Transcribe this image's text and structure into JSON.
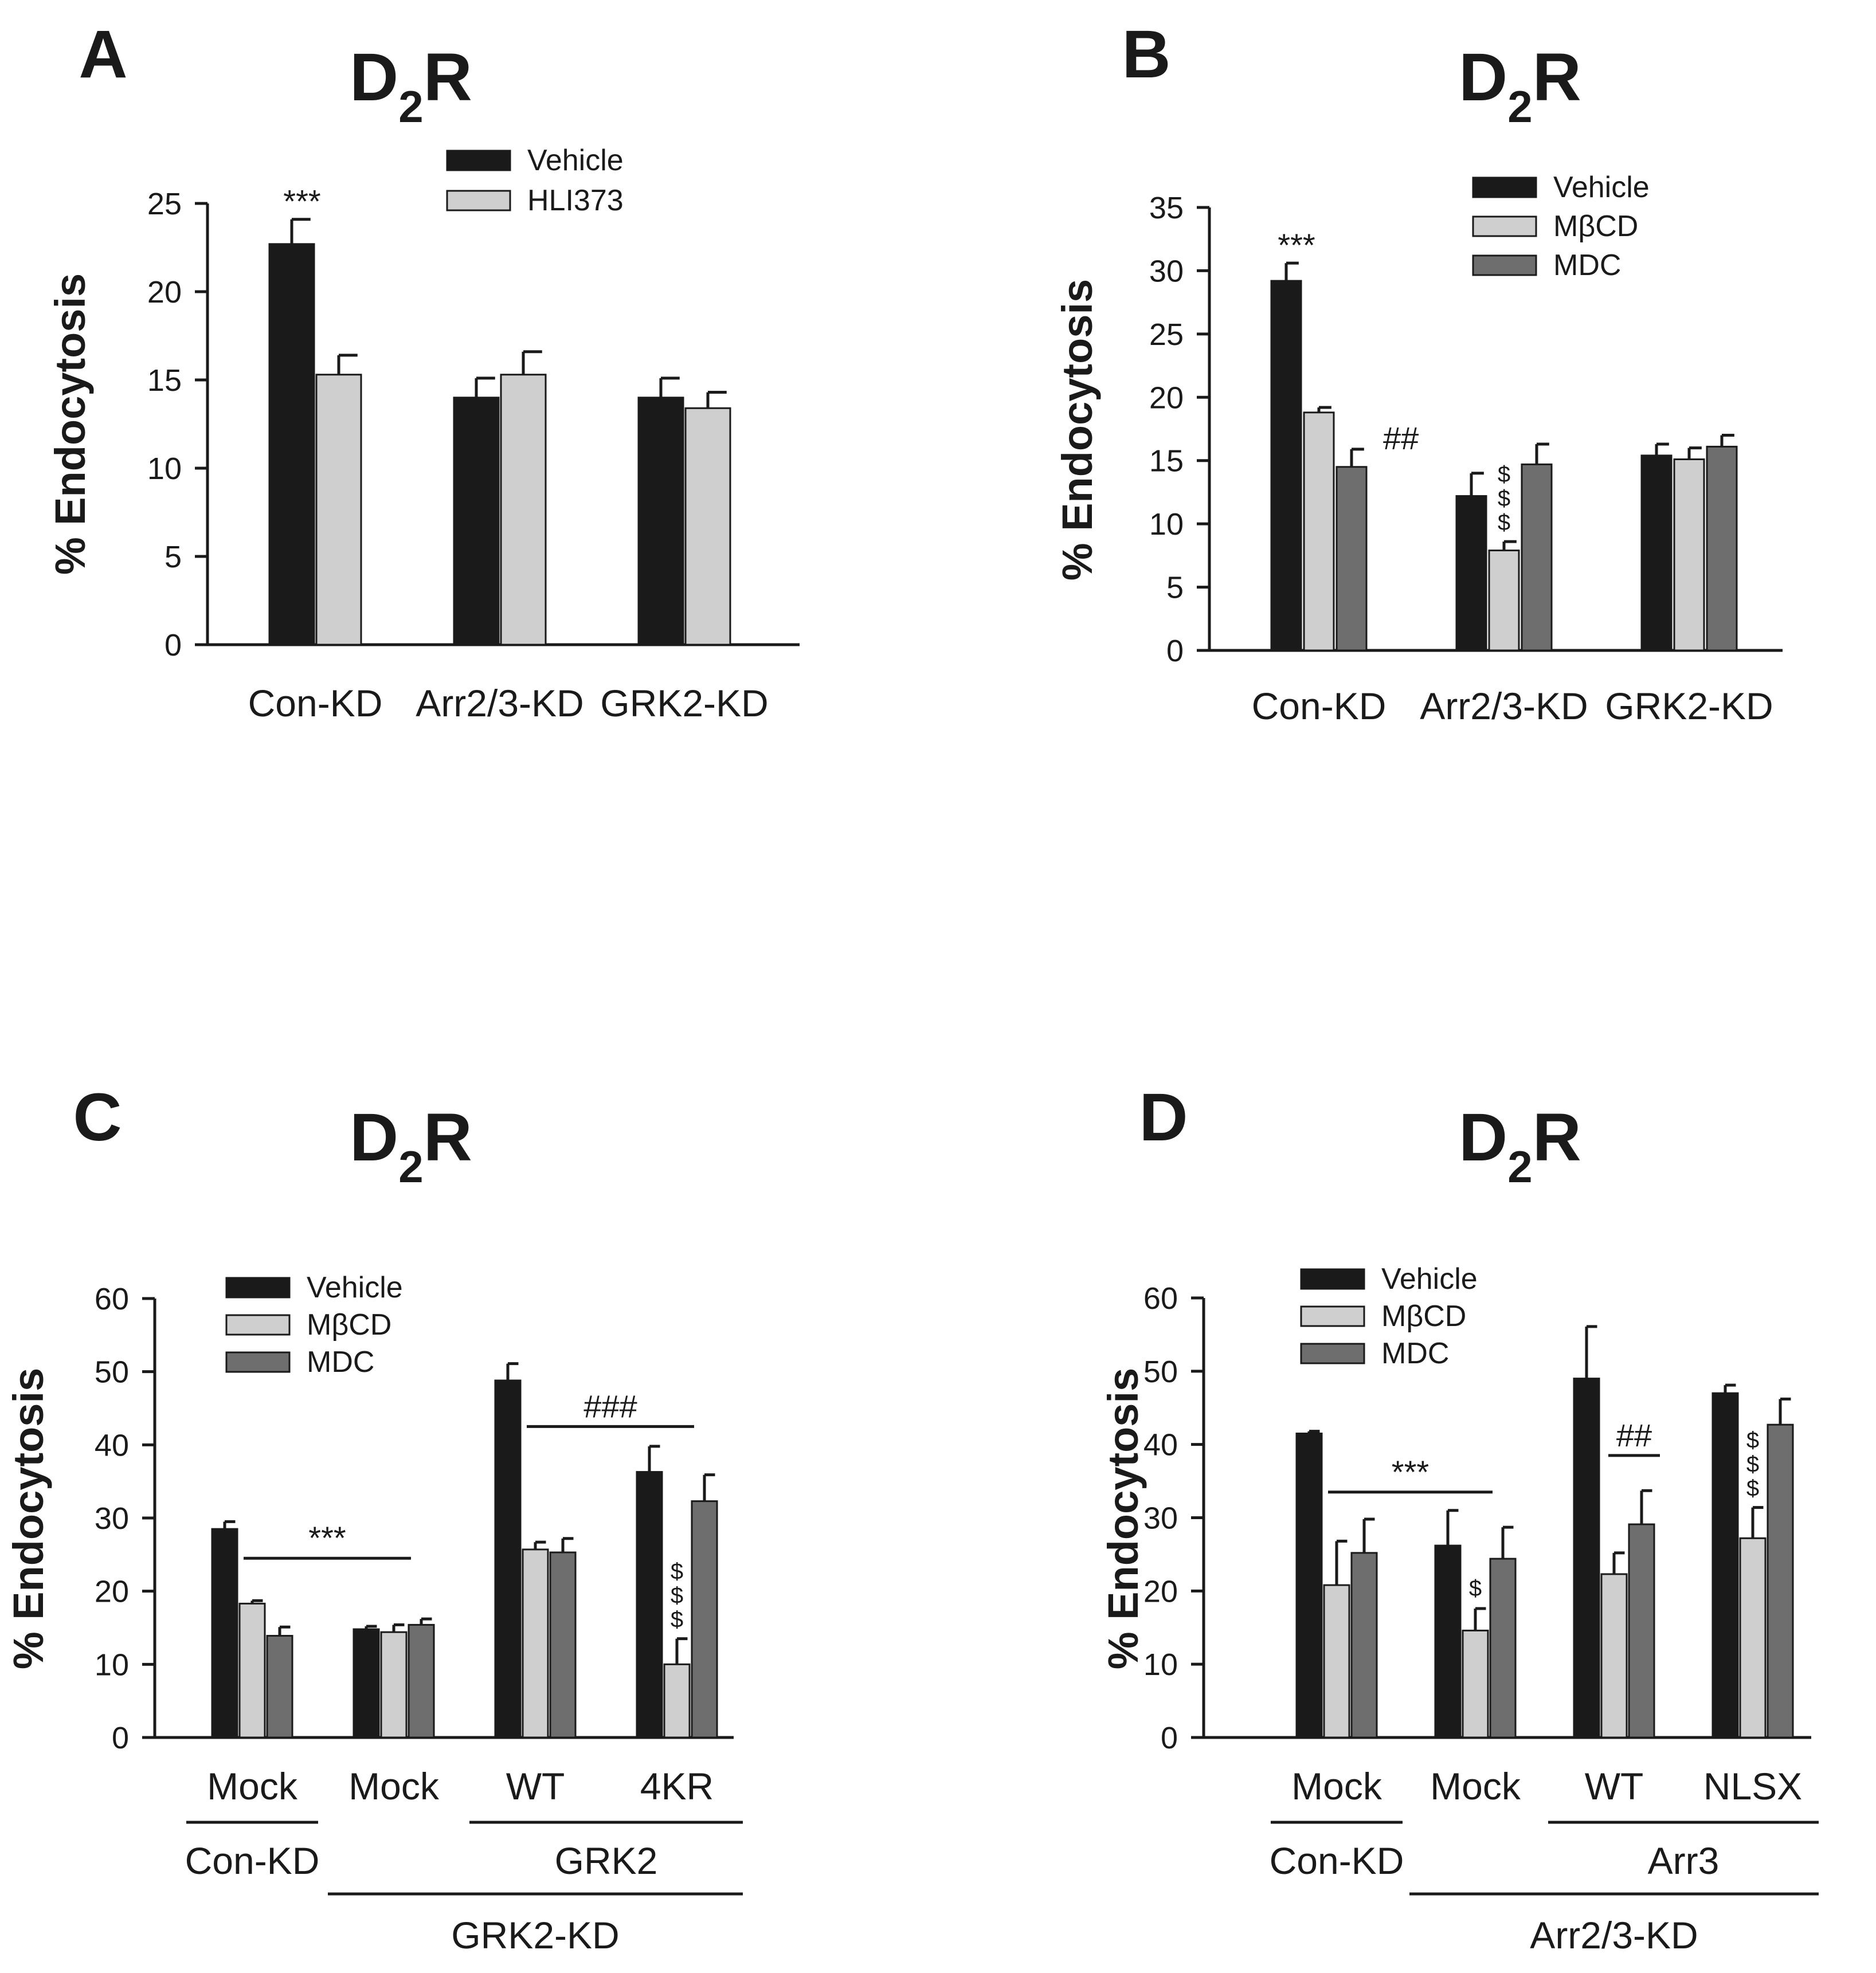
{
  "colors": {
    "Vehicle": "#1a1a1a",
    "HLI373": "#cfcfcf",
    "MβCD": "#cfcfcf",
    "MDC": "#6e6e6e"
  },
  "chart_data": [
    {
      "id": "A",
      "type": "bar",
      "panel_label": "A",
      "title": {
        "main": "D",
        "sub": "2",
        "tail": "R"
      },
      "ylabel": "% Endocytosis",
      "xlabel": "",
      "ylim": [
        0,
        25
      ],
      "yticks": [
        0,
        5,
        10,
        15,
        20,
        25
      ],
      "categories": [
        "Con-KD",
        "Arr2/3-KD",
        "GRK2-KD"
      ],
      "series": [
        {
          "name": "Vehicle",
          "values": [
            22.7,
            14.0,
            14.0
          ],
          "errors": [
            1.4,
            1.1,
            1.1
          ]
        },
        {
          "name": "HLI373",
          "values": [
            15.3,
            15.3,
            13.4
          ],
          "errors": [
            1.1,
            1.3,
            0.9
          ]
        }
      ],
      "legend": [
        "Vehicle",
        "HLI373"
      ],
      "annotations": [
        {
          "text": "***",
          "category": 0,
          "series": 0
        }
      ],
      "brackets": [],
      "group_labels": []
    },
    {
      "id": "B",
      "type": "bar",
      "panel_label": "B",
      "title": {
        "main": "D",
        "sub": "2",
        "tail": "R"
      },
      "ylabel": "% Endocytosis",
      "xlabel": "",
      "ylim": [
        0,
        35
      ],
      "yticks": [
        0,
        5,
        10,
        15,
        20,
        25,
        30,
        35
      ],
      "categories": [
        "Con-KD",
        "Arr2/3-KD",
        "GRK2-KD"
      ],
      "series": [
        {
          "name": "Vehicle",
          "values": [
            29.2,
            12.2,
            15.4
          ],
          "errors": [
            1.4,
            1.8,
            0.9
          ]
        },
        {
          "name": "MβCD",
          "values": [
            18.8,
            7.9,
            15.1
          ],
          "errors": [
            0.4,
            0.7,
            0.9
          ]
        },
        {
          "name": "MDC",
          "values": [
            14.5,
            14.7,
            16.1
          ],
          "errors": [
            1.4,
            1.6,
            0.9
          ]
        }
      ],
      "legend": [
        "Vehicle",
        "MβCD",
        "MDC"
      ],
      "annotations": [
        {
          "text": "***",
          "category": 0,
          "series": 0
        },
        {
          "text": "##",
          "category": 0,
          "series": 2
        },
        {
          "text": "$$$",
          "category": 1,
          "series": 1,
          "vertical": true
        }
      ],
      "brackets": [],
      "group_labels": []
    },
    {
      "id": "C",
      "type": "bar",
      "panel_label": "C",
      "title": {
        "main": "D",
        "sub": "2",
        "tail": "R"
      },
      "ylabel": "% Endocytosis",
      "xlabel": "",
      "ylim": [
        0,
        60
      ],
      "yticks": [
        0,
        10,
        20,
        30,
        40,
        50,
        60
      ],
      "categories": [
        "Mock",
        "Mock",
        "WT",
        "4KR"
      ],
      "series": [
        {
          "name": "Vehicle",
          "values": [
            28.5,
            14.8,
            48.8,
            36.3
          ],
          "errors": [
            1.0,
            0.4,
            2.3,
            3.5
          ]
        },
        {
          "name": "MβCD",
          "values": [
            18.3,
            14.4,
            25.7,
            10.0
          ],
          "errors": [
            0.4,
            1.0,
            1.0,
            3.5
          ]
        },
        {
          "name": "MDC",
          "values": [
            13.9,
            15.4,
            25.3,
            32.3
          ],
          "errors": [
            1.2,
            0.8,
            1.9,
            3.6
          ]
        }
      ],
      "legend": [
        "Vehicle",
        "MβCD",
        "MDC"
      ],
      "annotations": [
        {
          "text": "$$$",
          "category": 3,
          "series": 1,
          "vertical": true
        }
      ],
      "brackets": [
        {
          "text": "***",
          "from": 0,
          "to": 1,
          "y": 24.5
        },
        {
          "text": "###",
          "from": 2,
          "to": 3,
          "y": 42.5
        }
      ],
      "group_labels": [
        {
          "text": "Con-KD",
          "from": 0,
          "to": 0,
          "level": 1
        },
        {
          "text": "GRK2",
          "from": 2,
          "to": 3,
          "level": 1
        },
        {
          "text": "GRK2-KD",
          "from": 1,
          "to": 3,
          "level": 2
        }
      ]
    },
    {
      "id": "D",
      "type": "bar",
      "panel_label": "D",
      "title": {
        "main": "D",
        "sub": "2",
        "tail": "R"
      },
      "ylabel": "% Endocytosis",
      "xlabel": "",
      "ylim": [
        0,
        60
      ],
      "yticks": [
        0,
        10,
        20,
        30,
        40,
        50,
        60
      ],
      "categories": [
        "Mock",
        "Mock",
        "WT",
        "NLSX"
      ],
      "series": [
        {
          "name": "Vehicle",
          "values": [
            41.5,
            26.2,
            49.0,
            47.0
          ],
          "errors": [
            0.3,
            4.8,
            7.1,
            1.1
          ]
        },
        {
          "name": "MβCD",
          "values": [
            20.8,
            14.6,
            22.3,
            27.2
          ],
          "errors": [
            6.0,
            3.0,
            2.9,
            4.2
          ]
        },
        {
          "name": "MDC",
          "values": [
            25.2,
            24.4,
            29.1,
            42.7
          ],
          "errors": [
            4.6,
            4.3,
            4.6,
            3.5
          ]
        }
      ],
      "legend": [
        "Vehicle",
        "MβCD",
        "MDC"
      ],
      "annotations": [
        {
          "text": "$",
          "category": 1,
          "series": 1
        },
        {
          "text": "$$$",
          "category": 3,
          "series": 1,
          "vertical": true
        }
      ],
      "brackets": [
        {
          "text": "***",
          "from": 0,
          "to": 1,
          "y": 33.5
        },
        {
          "text": "##",
          "from": 2,
          "to": 2,
          "y": 38.5,
          "narrow": true
        }
      ],
      "group_labels": [
        {
          "text": "Con-KD",
          "from": 0,
          "to": 0,
          "level": 1
        },
        {
          "text": "Arr3",
          "from": 2,
          "to": 3,
          "level": 1
        },
        {
          "text": "Arr2/3-KD",
          "from": 1,
          "to": 3,
          "level": 2
        }
      ]
    }
  ]
}
